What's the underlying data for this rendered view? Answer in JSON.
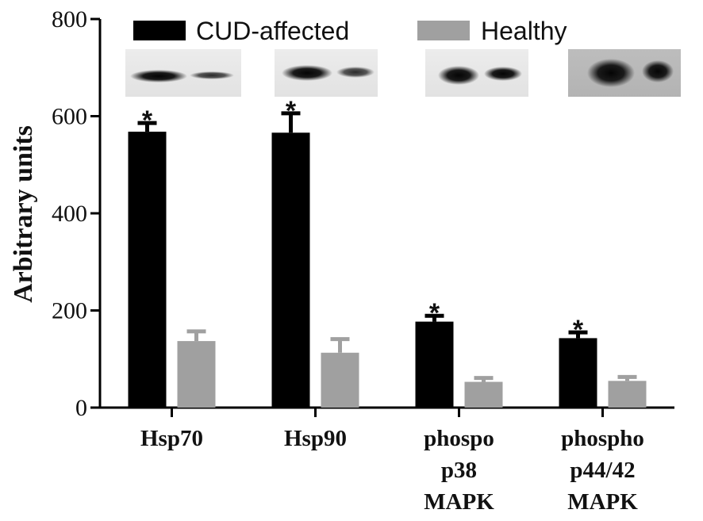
{
  "chart_data": {
    "type": "bar",
    "ylabel": "Arbitrary units",
    "xlabel": "",
    "ylim": [
      0,
      800
    ],
    "yticks": [
      0,
      200,
      400,
      600,
      800
    ],
    "categories": [
      [
        "Hsp70"
      ],
      [
        "Hsp90"
      ],
      [
        "phospo",
        "p38",
        "MAPK"
      ],
      [
        "phospho",
        "p44/42",
        "MAPK"
      ]
    ],
    "series": [
      {
        "name": "CUD-affected",
        "color": "#000000",
        "values": [
          568,
          566,
          177,
          143
        ],
        "errors": [
          18,
          40,
          12,
          12
        ],
        "significance": [
          "*",
          "*",
          "*",
          "*"
        ]
      },
      {
        "name": "Healthy",
        "color": "#a0a0a0",
        "values": [
          137,
          113,
          53,
          55
        ],
        "errors": [
          20,
          28,
          8,
          8
        ],
        "significance": [
          "",
          "",
          "",
          ""
        ]
      }
    ],
    "legend_position": "top",
    "grid": false,
    "blot_images": [
      "western-blot-hsp70",
      "western-blot-hsp90",
      "western-blot-phospo-p38",
      "western-blot-phospho-p44-42"
    ]
  }
}
